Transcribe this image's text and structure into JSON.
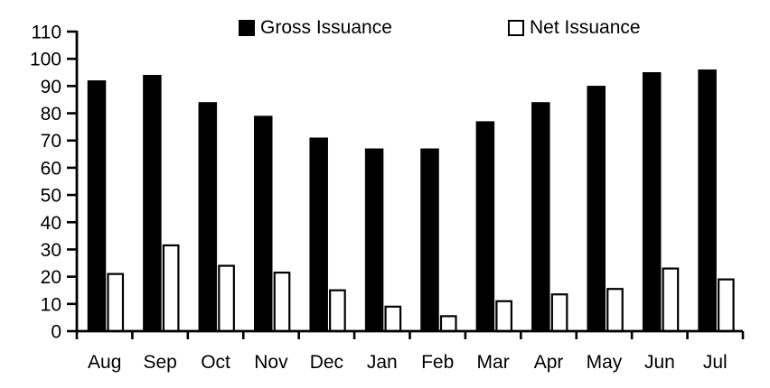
{
  "chart_data": {
    "type": "bar",
    "categories": [
      "Aug",
      "Sep",
      "Oct",
      "Nov",
      "Dec",
      "Jan",
      "Feb",
      "Mar",
      "Apr",
      "May",
      "Jun",
      "Jul"
    ],
    "series": [
      {
        "name": "Gross Issuance",
        "values": [
          92,
          94,
          84,
          79,
          71,
          67,
          67,
          77,
          84,
          90,
          95,
          96
        ],
        "fill": "#000000",
        "stroke": "#000000"
      },
      {
        "name": "Net Issuance",
        "values": [
          21,
          31.5,
          24,
          21.5,
          15,
          9,
          5.5,
          11,
          13.5,
          15.5,
          23,
          19
        ],
        "fill": "#ffffff",
        "stroke": "#000000"
      }
    ],
    "title": "",
    "xlabel": "",
    "ylabel": "",
    "ylim": [
      0,
      110
    ],
    "ytick_step": 10,
    "ytick_labels": [
      "0",
      "10",
      "20",
      "30",
      "40",
      "50",
      "60",
      "70",
      "80",
      "90",
      "100",
      "110"
    ],
    "grid": false,
    "legend_position": "top",
    "axis_color": "#000000",
    "background_color": "#ffffff"
  }
}
